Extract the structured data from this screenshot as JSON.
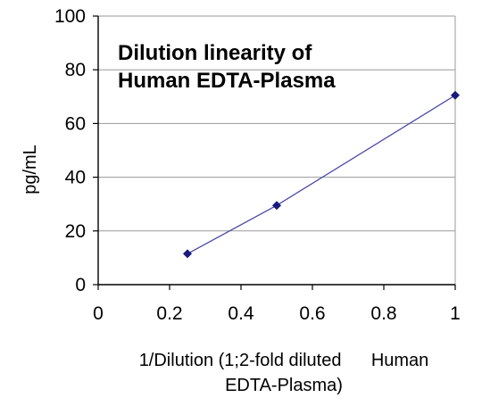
{
  "chart_data": {
    "type": "line",
    "title": [
      "Dilution linearity of",
      "Human EDTA-Plasma"
    ],
    "ylabel": "pg/mL",
    "xlabel": [
      "1/Dilution (1;2-fold diluted      Human",
      "EDTA-Plasma)"
    ],
    "xlim": [
      0,
      1
    ],
    "ylim": [
      0,
      100
    ],
    "xticks": [
      0,
      0.2,
      0.4,
      0.6,
      0.8,
      1
    ],
    "xtick_labels": [
      "0",
      "0.2",
      "0.4",
      "0.6",
      "0.8",
      "1"
    ],
    "yticks": [
      0,
      20,
      40,
      60,
      80,
      100
    ],
    "ytick_labels": [
      "0",
      "20",
      "40",
      "60",
      "80",
      "100"
    ],
    "grid": "horizontal",
    "legend": "none",
    "series": [
      {
        "x": [
          0.25,
          0.5,
          1
        ],
        "y": [
          11.5,
          29.5,
          70.5
        ],
        "color": "#4a4aa8",
        "marker_color": "#1a1a7a",
        "marker": "diamond"
      }
    ]
  }
}
